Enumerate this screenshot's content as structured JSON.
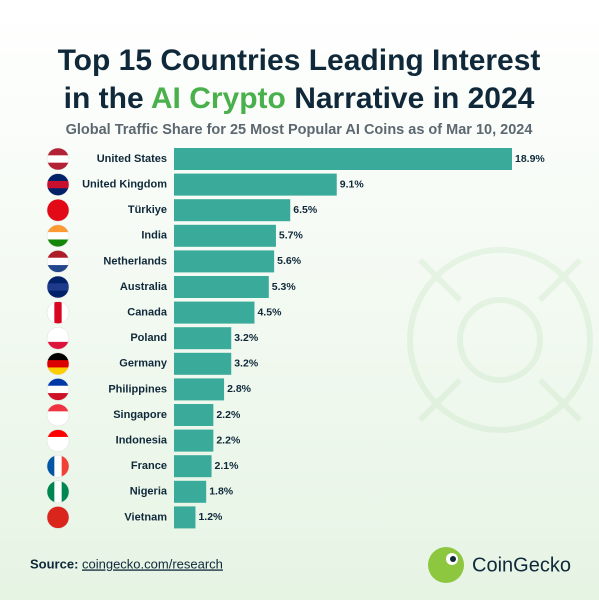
{
  "chart_data": {
    "type": "hbar",
    "title_line1": "Top 15 Countries Leading Interest",
    "title_line2": [
      "in the ",
      "AI Crypto",
      " Narrative in 2024"
    ],
    "subtitle": "Global Traffic Share for 25 Most Popular AI Coins as of Mar 10, 2024",
    "categories": [
      "United States",
      "United Kingdom",
      "Türkiye",
      "India",
      "Netherlands",
      "Australia",
      "Canada",
      "Poland",
      "Germany",
      "Philippines",
      "Singapore",
      "Indonesia",
      "France",
      "Nigeria",
      "Vietnam"
    ],
    "values": [
      18.9,
      9.1,
      6.5,
      5.7,
      5.6,
      5.3,
      4.5,
      3.2,
      3.2,
      2.8,
      2.2,
      2.2,
      2.1,
      1.8,
      1.2
    ],
    "value_labels": [
      "18.9%",
      "9.1%",
      "6.5%",
      "5.7%",
      "5.6%",
      "5.3%",
      "4.5%",
      "3.2%",
      "3.2%",
      "2.8%",
      "2.2%",
      "2.2%",
      "2.1%",
      "1.8%",
      "1.2%"
    ],
    "color": "#3aaa9a",
    "source_label": "Source:",
    "source": "coingecko.com/research",
    "brand": "CoinGecko"
  }
}
